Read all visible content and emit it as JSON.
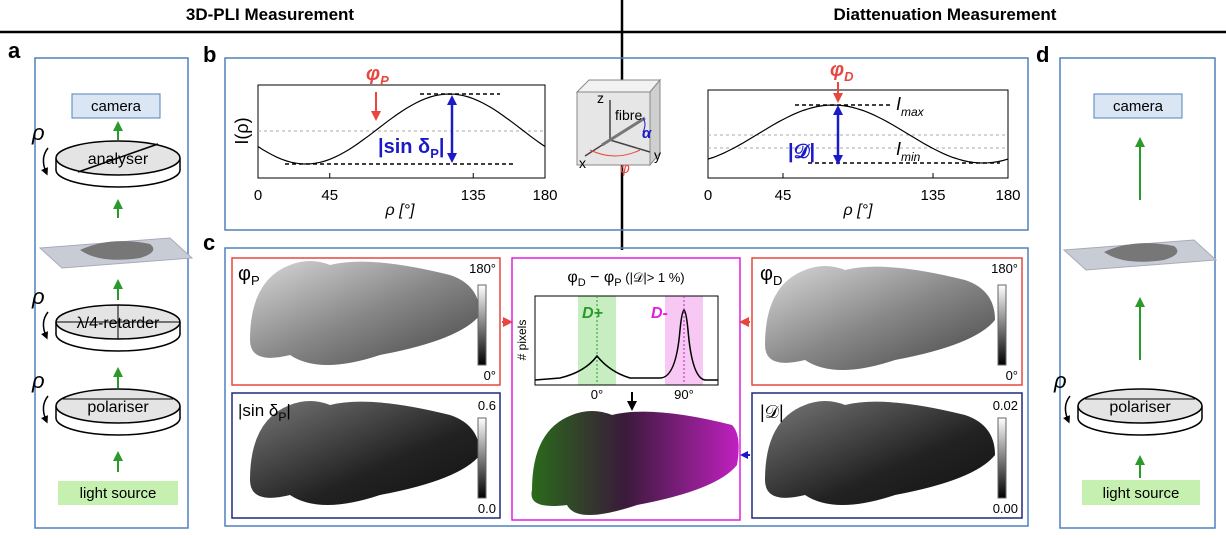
{
  "headers": {
    "left": "3D-PLI Measurement",
    "right": "Diattenuation Measurement"
  },
  "panel_labels": {
    "a": "a",
    "b": "b",
    "c": "c",
    "d": "d"
  },
  "setup_a": {
    "camera": "camera",
    "analyser": "analyser",
    "retarder": "λ/4-retarder",
    "polariser": "polariser",
    "light_source": "light source",
    "rho": "ρ"
  },
  "setup_d": {
    "camera": "camera",
    "polariser": "polariser",
    "light_source": "light source",
    "rho": "ρ"
  },
  "plot_pli": {
    "ylabel": "I(ρ)",
    "xlabel": "ρ [°]",
    "xlim": [
      0,
      180
    ],
    "xticks": [
      0,
      45,
      135,
      180
    ],
    "phi": "φ",
    "phi_sub": "P",
    "amplitude": "|sin δ",
    "amplitude_sub": "P",
    "amplitude_end": "|"
  },
  "plot_diatt": {
    "xlabel": "ρ [°]",
    "xlim": [
      0,
      180
    ],
    "xticks": [
      0,
      45,
      135,
      180
    ],
    "phi": "φ",
    "phi_sub": "D",
    "imax": "I",
    "imax_sub": "max",
    "imin": "I",
    "imin_sub": "min",
    "diatt": "|𝒟|"
  },
  "cube": {
    "z": "z",
    "x": "x",
    "y": "y",
    "fibre": "fibre",
    "alpha": "α",
    "phi": "φ"
  },
  "maps": {
    "phi_p": {
      "label": "φ",
      "sub": "P",
      "cmax": "180°",
      "cmin": "0°"
    },
    "sin_delta": {
      "label": "|sin δ",
      "sub": "P",
      "end": "|",
      "cmax": "0.6",
      "cmin": "0.0"
    },
    "phi_d": {
      "label": "φ",
      "sub": "D",
      "cmax": "180°",
      "cmin": "0°"
    },
    "diatt": {
      "label": "|𝒟|",
      "cmax": "0.02",
      "cmin": "0.00"
    },
    "difference": {
      "title": "φ",
      "sub1": "D",
      "minus": " − φ",
      "sub2": "P",
      "cond": " (|𝒟|> 1 %)",
      "ylabel": "# pixels",
      "tick0": "0°",
      "tick90": "90°",
      "dplus": "D+",
      "dminus": "D-"
    }
  }
}
